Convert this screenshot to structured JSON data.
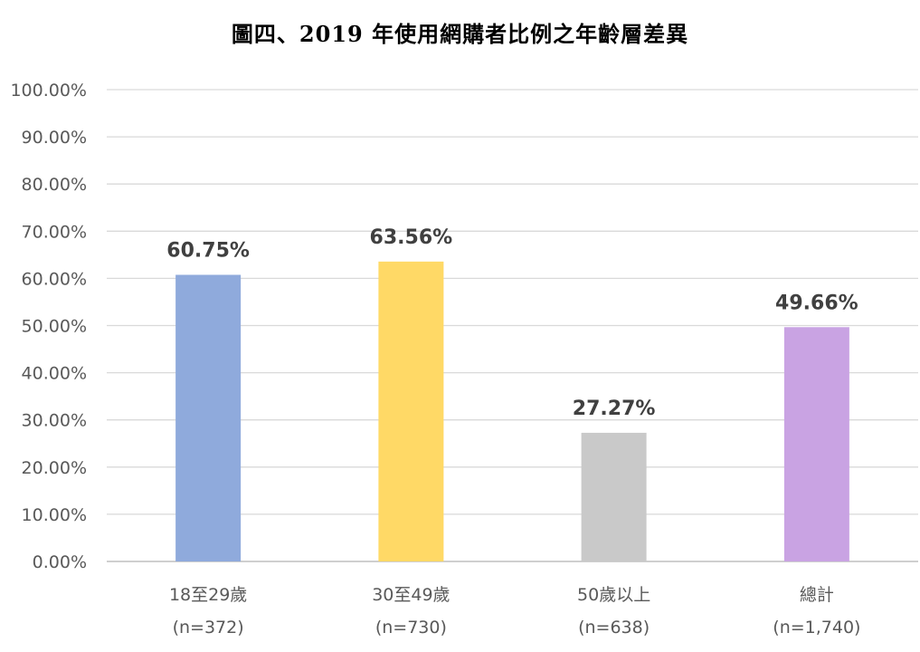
{
  "chart_data": {
    "type": "bar",
    "title": "圖四、2019 年使用網購者比例之年齡層差異",
    "categories": [
      "18至29歲",
      "30至49歲",
      "50歲以上",
      "總計"
    ],
    "sample_sizes": [
      "(n=372)",
      "(n=730)",
      "(n=638)",
      "(n=1,740)"
    ],
    "values": [
      60.75,
      63.56,
      27.27,
      49.66
    ],
    "data_labels": [
      "60.75%",
      "63.56%",
      "27.27%",
      "49.66%"
    ],
    "bar_colors": [
      "#8faadc",
      "#ffd966",
      "#c9c9c9",
      "#c9a3e3"
    ],
    "ylim": [
      0,
      100
    ],
    "yticks": [
      "0.00%",
      "10.00%",
      "20.00%",
      "30.00%",
      "40.00%",
      "50.00%",
      "60.00%",
      "70.00%",
      "80.00%",
      "90.00%",
      "100.00%"
    ],
    "grid": true,
    "legend": "none",
    "xlabel": "",
    "ylabel": ""
  }
}
